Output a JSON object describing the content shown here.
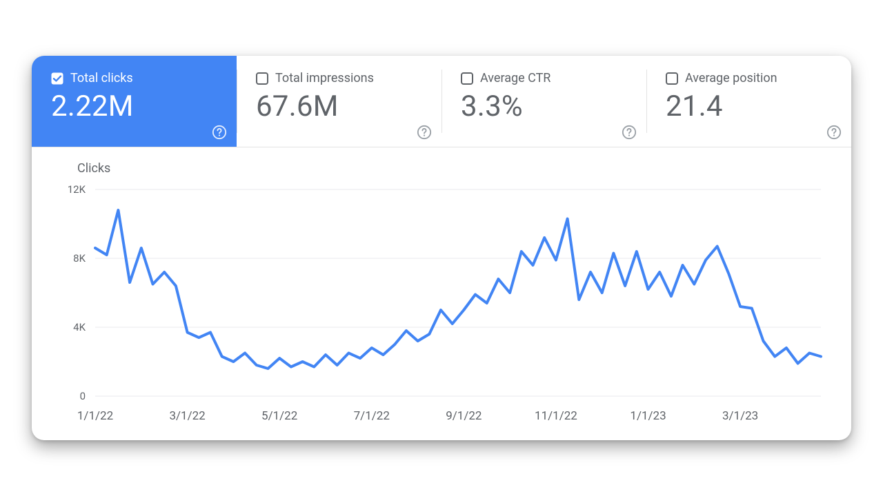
{
  "card": {
    "metrics": [
      {
        "id": "total-clicks",
        "label": "Total clicks",
        "value": "2.22M",
        "selected": true
      },
      {
        "id": "total-impressions",
        "label": "Total impressions",
        "value": "67.6M",
        "selected": false
      },
      {
        "id": "average-ctr",
        "label": "Average CTR",
        "value": "3.3%",
        "selected": false
      },
      {
        "id": "average-position",
        "label": "Average position",
        "value": "21.4",
        "selected": false
      }
    ],
    "accent_color": "#4285f4",
    "muted_text_color": "#5f6368",
    "divider_color": "#e3e3e3"
  },
  "chart": {
    "type": "line",
    "title": "Clicks",
    "series_color": "#4285f4",
    "line_width": 4,
    "background_color": "#ffffff",
    "grid_color": "#e8eaed",
    "y": {
      "min": 0,
      "max": 12000,
      "ticks": [
        0,
        4000,
        8000,
        12000
      ],
      "tick_labels": [
        "0",
        "4K",
        "8K",
        "12K"
      ]
    },
    "x": {
      "ticks_at_index": [
        0,
        8,
        16,
        24,
        32,
        40,
        48,
        56
      ],
      "tick_labels": [
        "1/1/22",
        "3/1/22",
        "5/1/22",
        "7/1/22",
        "9/1/22",
        "11/1/22",
        "1/1/23",
        "3/1/23"
      ]
    },
    "values": [
      8600,
      8200,
      10800,
      6600,
      8600,
      6500,
      7200,
      6400,
      3700,
      3400,
      3700,
      2300,
      2000,
      2500,
      1800,
      1600,
      2200,
      1700,
      2000,
      1700,
      2400,
      1800,
      2500,
      2200,
      2800,
      2400,
      3000,
      3800,
      3200,
      3600,
      5000,
      4200,
      5000,
      5900,
      5400,
      6800,
      6000,
      8400,
      7600,
      9200,
      7900,
      10300,
      5600,
      7200,
      6000,
      8300,
      6400,
      8400,
      6200,
      7200,
      5800,
      7600,
      6500,
      7900,
      8700,
      7100,
      5200,
      5100,
      3200,
      2300,
      2800,
      1900,
      2500,
      2300
    ],
    "label_fontsize": 15
  }
}
